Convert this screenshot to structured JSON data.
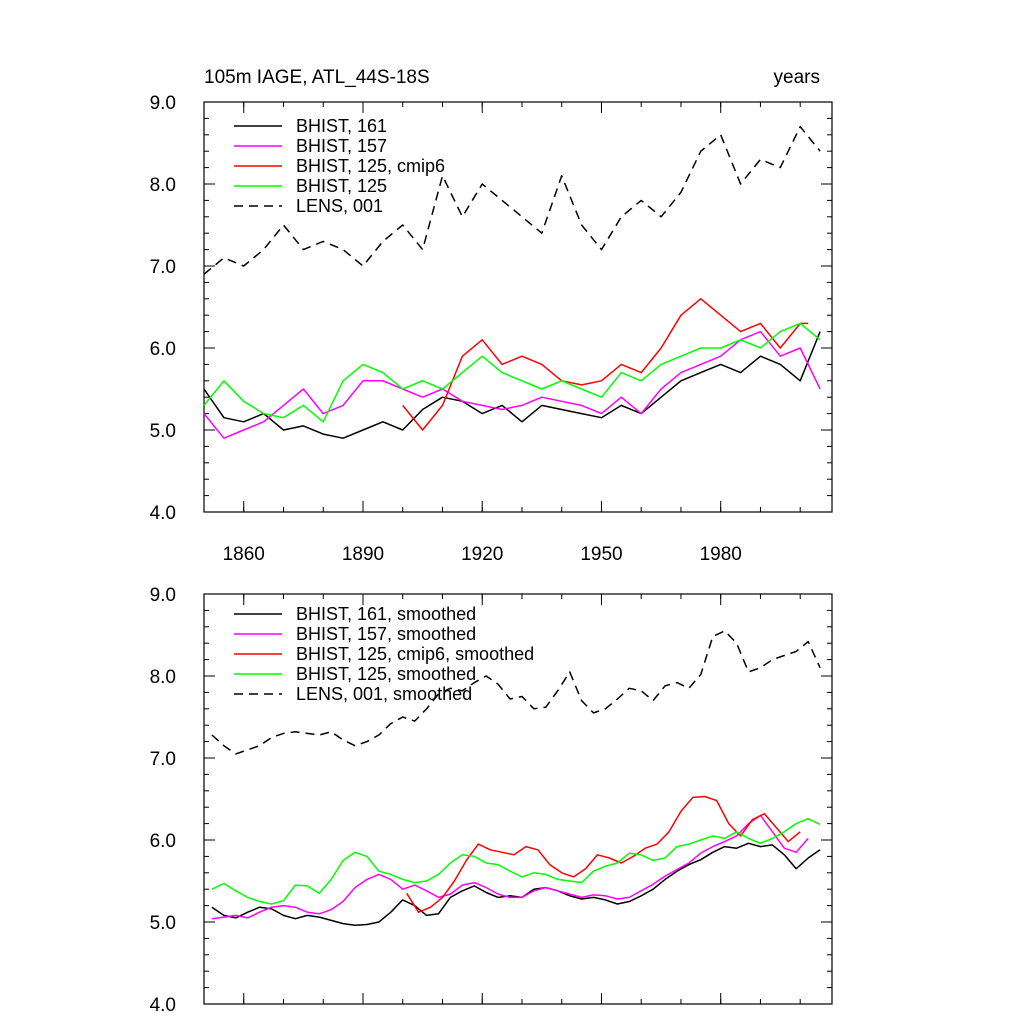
{
  "chart_data": [
    {
      "type": "line",
      "title_left": "105m IAGE, ATL_44S-18S",
      "title_right": "years",
      "xlim": [
        1850,
        2008
      ],
      "ylim": [
        4.0,
        9.0
      ],
      "x_ticks": [
        1860,
        1890,
        1920,
        1950,
        1980
      ],
      "x_tick_labels": [
        "1860",
        "1890",
        "1920",
        "1950",
        "1980"
      ],
      "y_ticks": [
        4.0,
        5.0,
        6.0,
        7.0,
        8.0,
        9.0
      ],
      "y_tick_labels": [
        "4.0",
        "5.0",
        "6.0",
        "7.0",
        "8.0",
        "9.0"
      ],
      "series": [
        {
          "name": "BHIST, 161",
          "color": "#000000",
          "dash": "solid",
          "x": [
            1850,
            1855,
            1860,
            1865,
            1870,
            1875,
            1880,
            1885,
            1890,
            1895,
            1900,
            1905,
            1910,
            1915,
            1920,
            1925,
            1930,
            1935,
            1940,
            1945,
            1950,
            1955,
            1960,
            1965,
            1970,
            1975,
            1980,
            1985,
            1990,
            1995,
            2000,
            2005
          ],
          "y": [
            5.5,
            5.15,
            5.1,
            5.2,
            5.0,
            5.05,
            4.95,
            4.9,
            5.0,
            5.1,
            5.0,
            5.25,
            5.4,
            5.35,
            5.2,
            5.3,
            5.1,
            5.3,
            5.25,
            5.2,
            5.15,
            5.3,
            5.2,
            5.4,
            5.6,
            5.7,
            5.8,
            5.7,
            5.9,
            5.8,
            5.6,
            6.2
          ]
        },
        {
          "name": "BHIST, 157",
          "color": "#ff00ff",
          "dash": "solid",
          "x": [
            1850,
            1855,
            1860,
            1865,
            1870,
            1875,
            1880,
            1885,
            1890,
            1895,
            1900,
            1905,
            1910,
            1915,
            1920,
            1925,
            1930,
            1935,
            1940,
            1945,
            1950,
            1955,
            1960,
            1965,
            1970,
            1975,
            1980,
            1985,
            1990,
            1995,
            2000,
            2005
          ],
          "y": [
            5.2,
            4.9,
            5.0,
            5.1,
            5.3,
            5.5,
            5.2,
            5.3,
            5.6,
            5.6,
            5.5,
            5.4,
            5.5,
            5.35,
            5.3,
            5.25,
            5.3,
            5.4,
            5.35,
            5.3,
            5.2,
            5.4,
            5.2,
            5.5,
            5.7,
            5.8,
            5.9,
            6.1,
            6.2,
            5.9,
            6.0,
            5.5
          ]
        },
        {
          "name": "BHIST, 125, cmip6",
          "color": "#ff0000",
          "dash": "solid",
          "x": [
            1900,
            1905,
            1910,
            1915,
            1920,
            1925,
            1930,
            1935,
            1940,
            1945,
            1950,
            1955,
            1960,
            1965,
            1970,
            1975,
            1980,
            1985,
            1990,
            1995,
            2000,
            2002
          ],
          "y": [
            5.3,
            5.0,
            5.3,
            5.9,
            6.1,
            5.8,
            5.9,
            5.8,
            5.6,
            5.55,
            5.6,
            5.8,
            5.7,
            6.0,
            6.4,
            6.6,
            6.4,
            6.2,
            6.3,
            6.0,
            6.3,
            6.3
          ]
        },
        {
          "name": "BHIST, 125",
          "color": "#00ff00",
          "dash": "solid",
          "x": [
            1850,
            1855,
            1860,
            1865,
            1870,
            1875,
            1880,
            1885,
            1890,
            1895,
            1900,
            1905,
            1910,
            1915,
            1920,
            1925,
            1930,
            1935,
            1940,
            1945,
            1950,
            1955,
            1960,
            1965,
            1970,
            1975,
            1980,
            1985,
            1990,
            1995,
            2000,
            2005
          ],
          "y": [
            5.3,
            5.6,
            5.35,
            5.2,
            5.15,
            5.3,
            5.1,
            5.6,
            5.8,
            5.7,
            5.5,
            5.6,
            5.5,
            5.7,
            5.9,
            5.7,
            5.6,
            5.5,
            5.6,
            5.5,
            5.4,
            5.7,
            5.6,
            5.8,
            5.9,
            6.0,
            6.0,
            6.1,
            6.0,
            6.2,
            6.3,
            6.1
          ]
        },
        {
          "name": "LENS, 001",
          "color": "#000000",
          "dash": "dashed",
          "x": [
            1850,
            1855,
            1860,
            1865,
            1870,
            1875,
            1880,
            1885,
            1890,
            1895,
            1900,
            1905,
            1910,
            1915,
            1920,
            1925,
            1930,
            1935,
            1940,
            1945,
            1950,
            1955,
            1960,
            1965,
            1970,
            1975,
            1980,
            1985,
            1990,
            1995,
            2000,
            2005
          ],
          "y": [
            6.9,
            7.1,
            7.0,
            7.2,
            7.5,
            7.2,
            7.3,
            7.2,
            7.0,
            7.3,
            7.5,
            7.2,
            8.1,
            7.6,
            8.0,
            7.8,
            7.6,
            7.4,
            8.1,
            7.5,
            7.2,
            7.6,
            7.8,
            7.6,
            7.9,
            8.4,
            8.6,
            8.0,
            8.3,
            8.2,
            8.7,
            8.4
          ]
        }
      ]
    },
    {
      "type": "line",
      "xlim": [
        1850,
        2008
      ],
      "ylim": [
        4.0,
        9.0
      ],
      "x_ticks": [
        1860,
        1890,
        1920,
        1950,
        1980
      ],
      "y_ticks": [
        4.0,
        5.0,
        6.0,
        7.0,
        8.0,
        9.0
      ],
      "y_tick_labels": [
        "4.0",
        "5.0",
        "6.0",
        "7.0",
        "8.0",
        "9.0"
      ],
      "series": [
        {
          "name": "BHIST, 161, smoothed",
          "color": "#000000",
          "dash": "solid",
          "x": [
            1852,
            1855,
            1858,
            1861,
            1864,
            1867,
            1870,
            1873,
            1876,
            1879,
            1882,
            1885,
            1888,
            1891,
            1894,
            1897,
            1900,
            1903,
            1906,
            1909,
            1912,
            1915,
            1918,
            1921,
            1924,
            1927,
            1930,
            1933,
            1936,
            1939,
            1942,
            1945,
            1948,
            1951,
            1954,
            1957,
            1960,
            1963,
            1966,
            1969,
            1972,
            1975,
            1978,
            1981,
            1984,
            1987,
            1990,
            1993,
            1996,
            1999,
            2002,
            2005
          ],
          "y": [
            5.18,
            5.08,
            5.05,
            5.12,
            5.18,
            5.16,
            5.08,
            5.04,
            5.08,
            5.06,
            5.02,
            4.98,
            4.96,
            4.97,
            5.0,
            5.12,
            5.27,
            5.2,
            5.08,
            5.1,
            5.3,
            5.38,
            5.44,
            5.36,
            5.3,
            5.32,
            5.3,
            5.4,
            5.42,
            5.38,
            5.32,
            5.28,
            5.3,
            5.27,
            5.22,
            5.25,
            5.32,
            5.4,
            5.52,
            5.62,
            5.7,
            5.76,
            5.85,
            5.92,
            5.9,
            5.96,
            5.92,
            5.94,
            5.82,
            5.65,
            5.78,
            5.88
          ]
        },
        {
          "name": "BHIST, 157, smoothed",
          "color": "#ff00ff",
          "dash": "solid",
          "x": [
            1852,
            1855,
            1858,
            1861,
            1864,
            1867,
            1870,
            1873,
            1876,
            1879,
            1882,
            1885,
            1888,
            1891,
            1894,
            1897,
            1900,
            1903,
            1906,
            1909,
            1912,
            1915,
            1918,
            1921,
            1924,
            1927,
            1930,
            1933,
            1936,
            1939,
            1942,
            1945,
            1948,
            1951,
            1954,
            1957,
            1960,
            1963,
            1966,
            1969,
            1972,
            1975,
            1978,
            1981,
            1984,
            1987,
            1990,
            1993,
            1996,
            1999,
            2002
          ],
          "y": [
            5.04,
            5.06,
            5.08,
            5.05,
            5.12,
            5.18,
            5.2,
            5.18,
            5.12,
            5.1,
            5.15,
            5.25,
            5.42,
            5.52,
            5.58,
            5.52,
            5.4,
            5.45,
            5.38,
            5.3,
            5.34,
            5.45,
            5.48,
            5.42,
            5.34,
            5.3,
            5.3,
            5.38,
            5.42,
            5.38,
            5.34,
            5.3,
            5.33,
            5.32,
            5.28,
            5.3,
            5.38,
            5.46,
            5.56,
            5.64,
            5.72,
            5.84,
            5.92,
            5.98,
            6.05,
            6.2,
            6.3,
            6.1,
            5.9,
            5.85,
            6.02
          ]
        },
        {
          "name": "BHIST, 125, cmip6, smoothed",
          "color": "#ff0000",
          "dash": "solid",
          "x": [
            1901,
            1904,
            1907,
            1910,
            1913,
            1916,
            1919,
            1922,
            1925,
            1928,
            1931,
            1934,
            1937,
            1940,
            1943,
            1946,
            1949,
            1952,
            1955,
            1958,
            1961,
            1964,
            1967,
            1970,
            1973,
            1976,
            1979,
            1982,
            1985,
            1988,
            1991,
            1994,
            1997,
            2000
          ],
          "y": [
            5.35,
            5.12,
            5.18,
            5.3,
            5.5,
            5.75,
            5.95,
            5.88,
            5.85,
            5.82,
            5.92,
            5.88,
            5.7,
            5.6,
            5.55,
            5.65,
            5.82,
            5.78,
            5.72,
            5.8,
            5.9,
            5.95,
            6.1,
            6.35,
            6.52,
            6.53,
            6.48,
            6.2,
            6.05,
            6.25,
            6.32,
            6.15,
            5.98,
            6.1
          ]
        },
        {
          "name": "BHIST, 125, smoothed",
          "color": "#00ff00",
          "dash": "solid",
          "x": [
            1852,
            1855,
            1858,
            1861,
            1864,
            1867,
            1870,
            1873,
            1876,
            1879,
            1882,
            1885,
            1888,
            1891,
            1894,
            1897,
            1900,
            1903,
            1906,
            1909,
            1912,
            1915,
            1918,
            1921,
            1924,
            1927,
            1930,
            1933,
            1936,
            1939,
            1942,
            1945,
            1948,
            1951,
            1954,
            1957,
            1960,
            1963,
            1966,
            1969,
            1972,
            1975,
            1978,
            1981,
            1984,
            1987,
            1990,
            1993,
            1996,
            1999,
            2002,
            2005
          ],
          "y": [
            5.4,
            5.47,
            5.38,
            5.3,
            5.25,
            5.22,
            5.26,
            5.45,
            5.44,
            5.35,
            5.52,
            5.75,
            5.85,
            5.8,
            5.62,
            5.58,
            5.52,
            5.48,
            5.5,
            5.58,
            5.72,
            5.82,
            5.8,
            5.72,
            5.7,
            5.62,
            5.55,
            5.6,
            5.58,
            5.52,
            5.5,
            5.48,
            5.62,
            5.68,
            5.72,
            5.84,
            5.82,
            5.75,
            5.78,
            5.92,
            5.95,
            6.0,
            6.05,
            6.02,
            6.1,
            6.02,
            5.96,
            6.02,
            6.1,
            6.2,
            6.26,
            6.19
          ]
        },
        {
          "name": "LENS, 001, smoothed",
          "color": "#000000",
          "dash": "dashed",
          "x": [
            1852,
            1855,
            1858,
            1861,
            1864,
            1867,
            1870,
            1873,
            1876,
            1879,
            1882,
            1885,
            1888,
            1891,
            1894,
            1897,
            1900,
            1903,
            1906,
            1909,
            1912,
            1915,
            1918,
            1921,
            1924,
            1927,
            1930,
            1933,
            1936,
            1939,
            1942,
            1945,
            1948,
            1951,
            1954,
            1957,
            1960,
            1963,
            1966,
            1969,
            1972,
            1975,
            1978,
            1981,
            1984,
            1987,
            1990,
            1993,
            1996,
            1999,
            2002,
            2005
          ],
          "y": [
            7.28,
            7.15,
            7.05,
            7.1,
            7.15,
            7.25,
            7.3,
            7.32,
            7.3,
            7.28,
            7.32,
            7.22,
            7.15,
            7.2,
            7.28,
            7.42,
            7.5,
            7.45,
            7.6,
            7.78,
            7.85,
            7.82,
            7.92,
            8.0,
            7.9,
            7.72,
            7.75,
            7.6,
            7.62,
            7.82,
            8.05,
            7.7,
            7.55,
            7.6,
            7.72,
            7.85,
            7.82,
            7.7,
            7.88,
            7.92,
            7.85,
            8.02,
            8.48,
            8.55,
            8.4,
            8.05,
            8.1,
            8.2,
            8.25,
            8.3,
            8.42,
            8.1
          ]
        }
      ]
    }
  ]
}
